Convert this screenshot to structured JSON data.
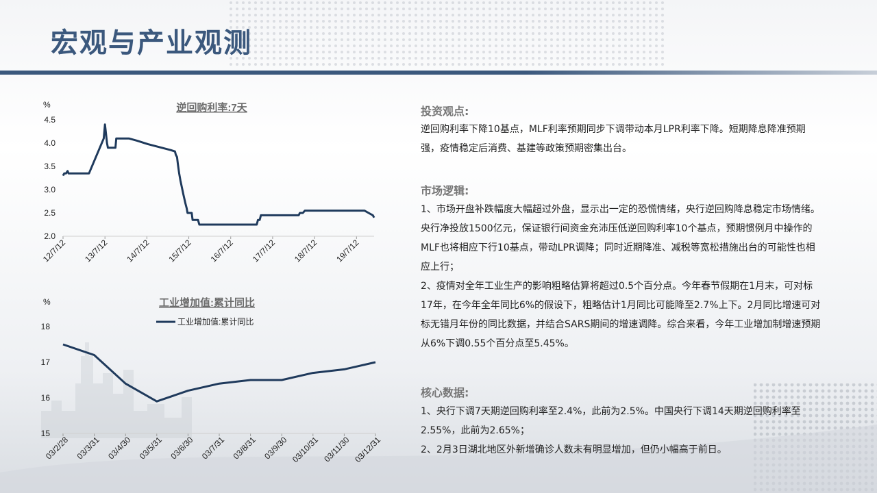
{
  "page": {
    "title": "宏观与产业观测"
  },
  "chart_data": [
    {
      "type": "line",
      "title": "逆回购利率:7天",
      "unit": "%",
      "ylim": [
        2.0,
        4.5
      ],
      "yticks": [
        "2.0",
        "2.5",
        "3.0",
        "3.5",
        "4.0",
        "4.5"
      ],
      "x_tick_labels": [
        "12/7/12",
        "13/7/12",
        "14/7/12",
        "15/7/12",
        "16/7/12",
        "17/7/12",
        "18/7/12",
        "19/7/12"
      ],
      "x_tick_years": [
        2012.53,
        2013.53,
        2014.53,
        2015.53,
        2016.53,
        2017.53,
        2018.53,
        2019.53
      ],
      "xlim": [
        2012.53,
        2019.95
      ],
      "series": [
        {
          "color": "#1f3a5c",
          "x": [
            2012.53,
            2012.56,
            2012.6,
            2012.64,
            2012.66,
            2013.15,
            2013.5,
            2013.53,
            2013.58,
            2013.6,
            2013.7,
            2013.78,
            2013.8,
            2014.1,
            2014.3,
            2014.55,
            2015.1,
            2015.2,
            2015.22,
            2015.25,
            2015.27,
            2015.3,
            2015.33,
            2015.4,
            2015.45,
            2015.48,
            2015.5,
            2015.52,
            2015.57,
            2015.6,
            2015.62,
            2015.75,
            2015.78,
            2015.85,
            2015.88,
            2016.75,
            2016.9,
            2017.15,
            2017.18,
            2017.22,
            2017.25,
            2017.9,
            2017.93,
            2018.15,
            2018.18,
            2018.25,
            2018.3,
            2019.1,
            2019.7,
            2019.72,
            2019.82,
            2019.92,
            2019.95
          ],
          "values": [
            3.3,
            3.35,
            3.35,
            3.4,
            3.35,
            3.35,
            4.1,
            4.4,
            4.0,
            3.9,
            3.9,
            3.9,
            4.1,
            4.1,
            4.05,
            3.98,
            3.85,
            3.82,
            3.75,
            3.7,
            3.55,
            3.35,
            3.2,
            2.9,
            2.7,
            2.6,
            2.5,
            2.5,
            2.5,
            2.5,
            2.35,
            2.35,
            2.25,
            2.25,
            2.25,
            2.25,
            2.25,
            2.25,
            2.35,
            2.35,
            2.45,
            2.45,
            2.45,
            2.45,
            2.5,
            2.5,
            2.55,
            2.55,
            2.55,
            2.55,
            2.5,
            2.45,
            2.4
          ]
        }
      ]
    },
    {
      "type": "line",
      "title": "工业增加值:累计同比",
      "unit": "%",
      "ylim": [
        15,
        18
      ],
      "yticks": [
        "15",
        "16",
        "17",
        "18"
      ],
      "legend": "top",
      "categories": [
        "03/2/28",
        "03/3/31",
        "03/4/30",
        "03/5/31",
        "03/6/30",
        "03/7/31",
        "03/8/31",
        "03/9/30",
        "03/10/31",
        "03/11/30",
        "03/12/31"
      ],
      "series": [
        {
          "name": "工业增加值:累计同比",
          "color": "#1f3a5c",
          "values": [
            17.5,
            17.2,
            16.4,
            15.9,
            16.2,
            16.4,
            16.5,
            16.5,
            16.7,
            16.8,
            17.0
          ]
        }
      ]
    }
  ],
  "sections": [
    {
      "heading": "投资观点:",
      "paragraphs": [
        "逆回购利率下降10基点，MLF利率预期同步下调带动本月LPR利率下降。短期降息降准预期强，疫情稳定后消费、基建等政策预期密集出台。"
      ]
    },
    {
      "heading": "市场逻辑:",
      "paragraphs": [
        "1、市场开盘补跌幅度大幅超过外盘，显示出一定的恐慌情绪，央行逆回购降息稳定市场情绪。央行净投放1500亿元，保证银行间资金充沛压低逆回购利率10个基点，预期惯例月中操作的MLF也将相应下行10基点，带动LPR调降；同时近期降准、减税等宽松措施出台的可能性也相应上行；",
        "2、疫情对全年工业生产的影响粗略估算将超过0.5个百分点。今年春节假期在1月末，可对标17年，在今年全年同比6%的假设下，粗略估计1月同比可能降至2.7%上下。2月同比增速可对标无错月年份的同比数据，并结合SARS期间的增速调降。综合来看，今年工业增加制增速预期从6%下调0.55个百分点至5.45%。"
      ]
    },
    {
      "heading": "核心数据:",
      "paragraphs": [
        "1、央行下调7天期逆回购利率至2.4%，此前为2.5%。中国央行下调14天期逆回购利率至2.55%，此前为2.65%；",
        "2、2月3日湖北地区外新增确诊人数未有明显增加，但仍小幅高于前日。"
      ]
    }
  ]
}
